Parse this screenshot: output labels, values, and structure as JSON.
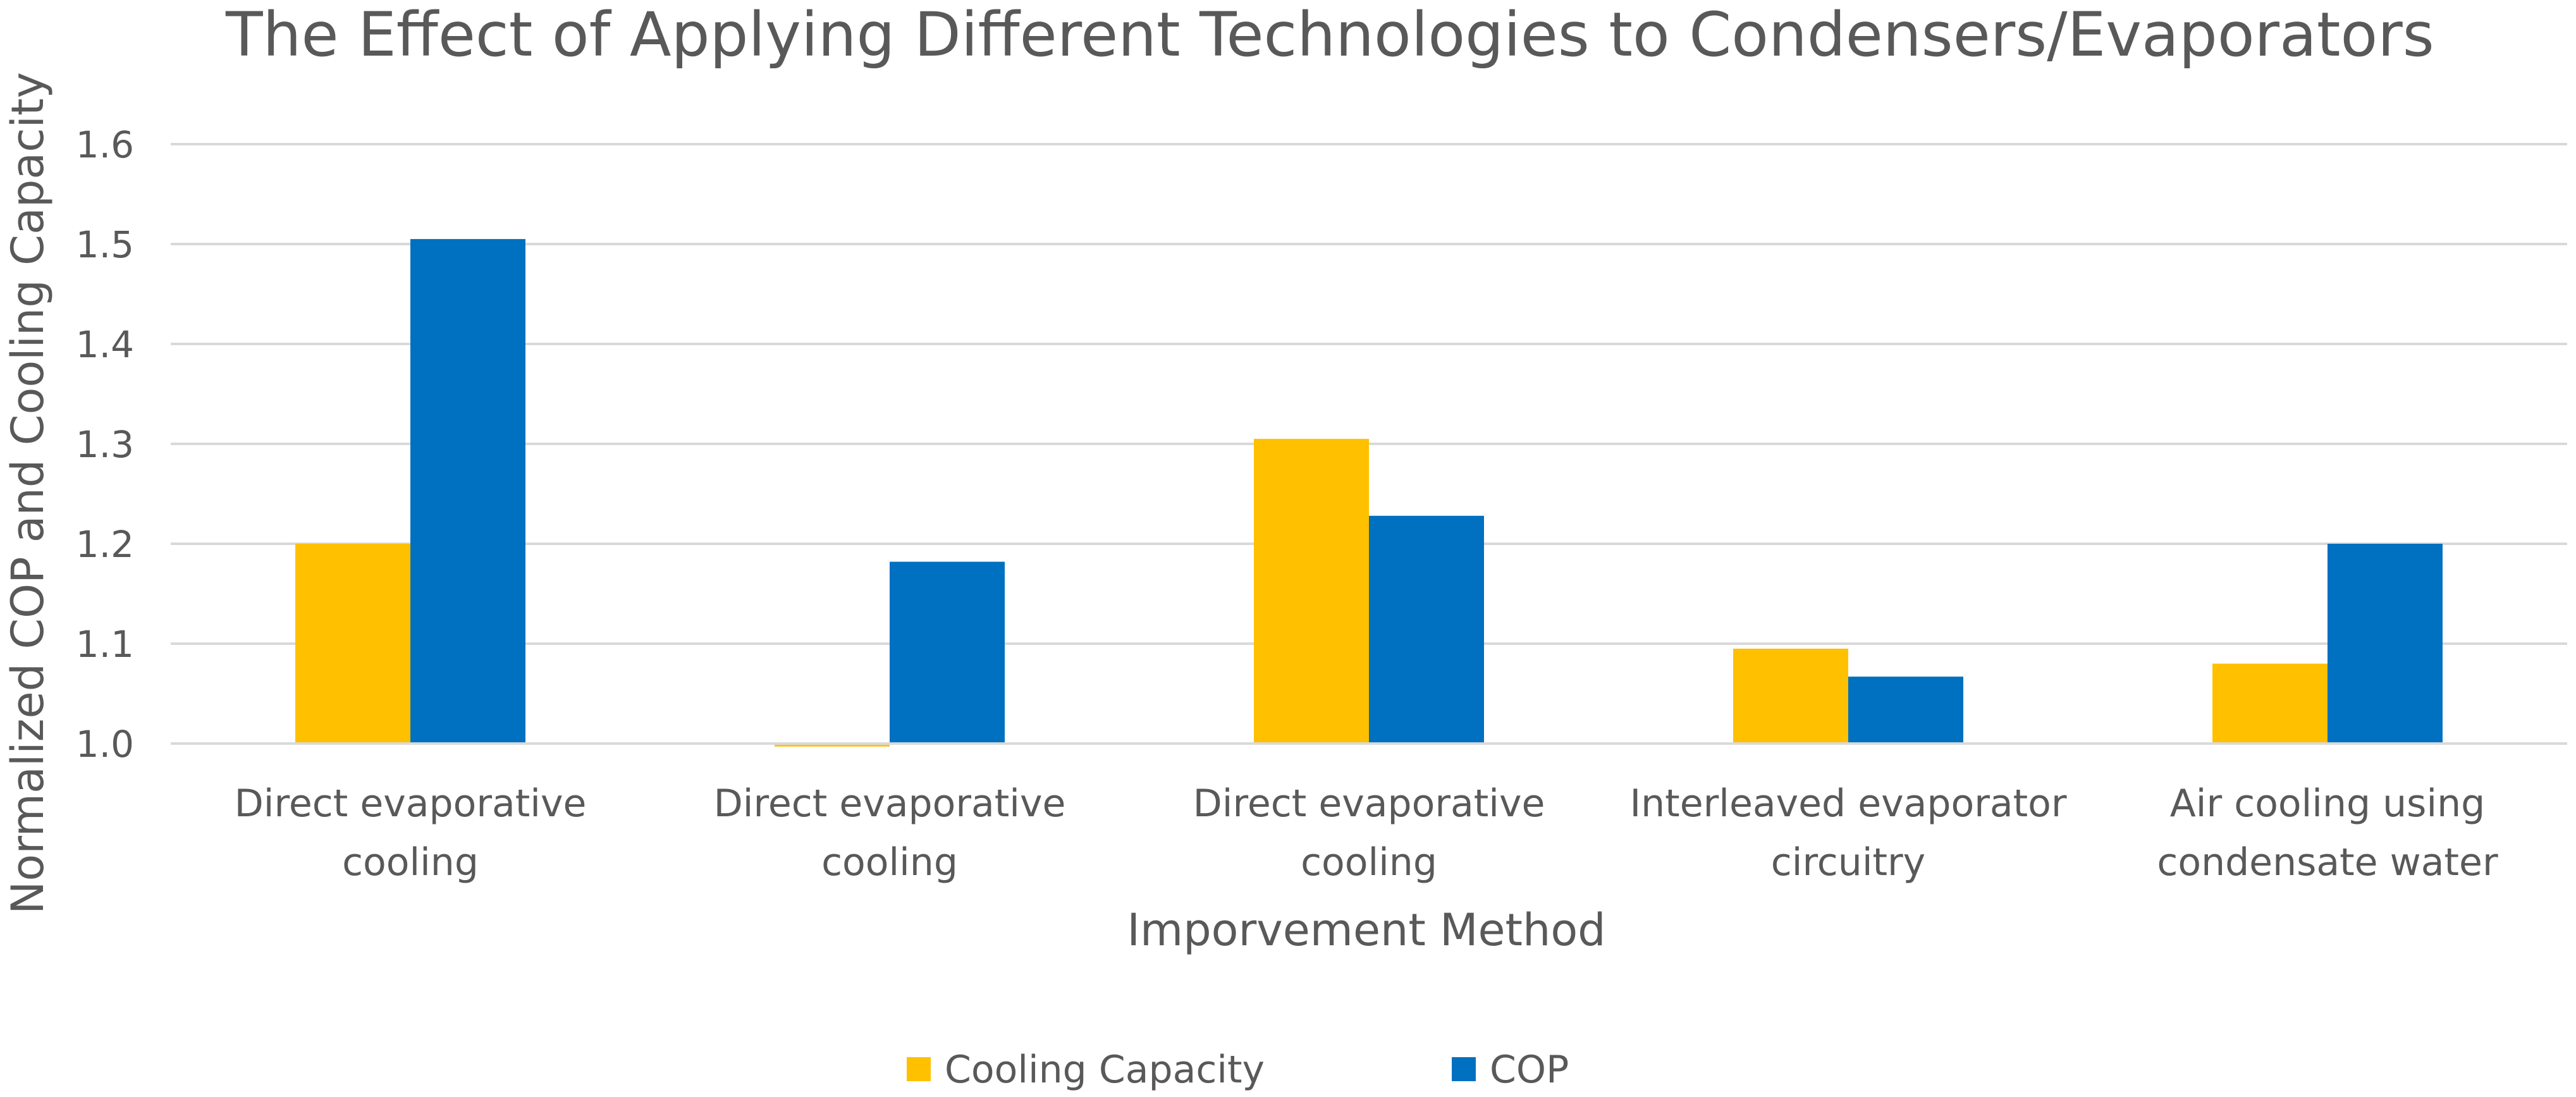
{
  "chart_data": {
    "type": "bar",
    "title": "The Effect of Applying Different Technologies to Condensers/Evaporators",
    "xlabel": "Imporvement Method",
    "ylabel": "Normalized COP and Cooling Capacity",
    "ylim": [
      1.0,
      1.6
    ],
    "yticks": [
      "1.0",
      "1.1",
      "1.2",
      "1.3",
      "1.4",
      "1.5",
      "1.6"
    ],
    "categories": [
      [
        "Direct evaporative",
        "cooling"
      ],
      [
        "Direct evaporative",
        "cooling"
      ],
      [
        "Direct evaporative",
        "cooling"
      ],
      [
        "Interleaved evaporator",
        "circuitry"
      ],
      [
        "Air cooling using",
        "condensate water"
      ]
    ],
    "series": [
      {
        "name": "Cooling Capacity",
        "color": "#FFC000",
        "values": [
          1.2,
          0.997,
          1.305,
          1.095,
          1.08
        ]
      },
      {
        "name": "COP",
        "color": "#0070C0",
        "values": [
          1.505,
          1.182,
          1.228,
          1.067,
          1.2
        ]
      }
    ],
    "grid": true,
    "legend": "bottom"
  }
}
